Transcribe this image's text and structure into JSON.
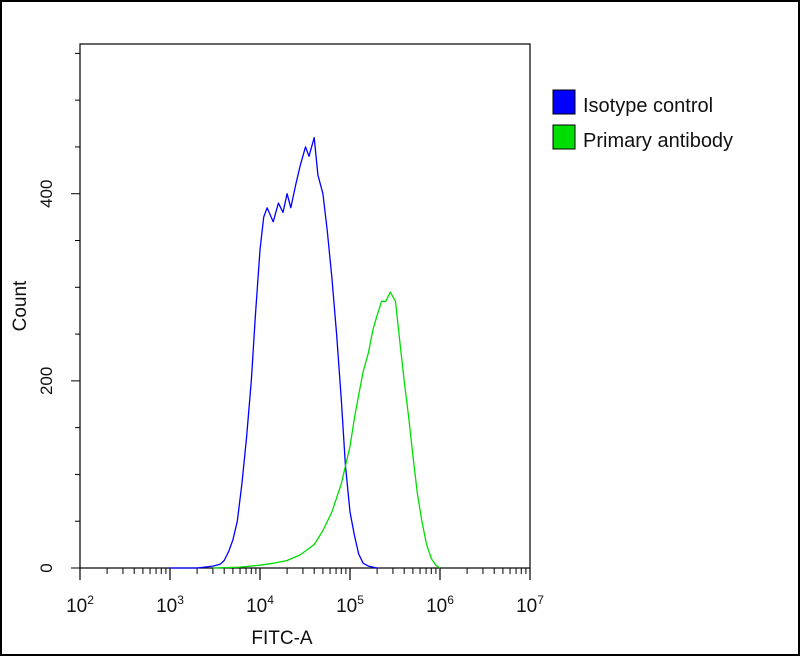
{
  "chart_data": {
    "type": "line",
    "title": "",
    "xlabel": "FITC-A",
    "ylabel": "Count",
    "x_scale": "log10",
    "x_range": [
      100,
      10000000
    ],
    "y_range": [
      0,
      560
    ],
    "x_ticks": [
      {
        "value": 100,
        "base": "10",
        "exp": "2"
      },
      {
        "value": 1000,
        "base": "10",
        "exp": "3"
      },
      {
        "value": 10000,
        "base": "10",
        "exp": "4"
      },
      {
        "value": 100000,
        "base": "10",
        "exp": "5"
      },
      {
        "value": 1000000,
        "base": "10",
        "exp": "6"
      },
      {
        "value": 10000000,
        "base": "10",
        "exp": "7"
      }
    ],
    "y_ticks": [
      {
        "value": 0,
        "label": "0"
      },
      {
        "value": 200,
        "label": "200"
      },
      {
        "value": 400,
        "label": "400"
      }
    ],
    "legend_position": "right",
    "series": [
      {
        "name": "Isotype control",
        "color": "#0000ff",
        "x": [
          1000,
          2000,
          3000,
          3600,
          4000,
          4500,
          5000,
          5600,
          6300,
          7100,
          8000,
          8900,
          10000,
          11000,
          12000,
          14000,
          16000,
          18000,
          20000,
          22000,
          25000,
          28000,
          32000,
          35000,
          40000,
          44000,
          50000,
          56000,
          63000,
          71000,
          80000,
          89000,
          100000,
          112000,
          125000,
          140000,
          160000,
          200000
        ],
        "y": [
          0,
          0,
          2,
          4,
          8,
          18,
          30,
          50,
          90,
          140,
          200,
          270,
          340,
          375,
          385,
          370,
          390,
          380,
          400,
          385,
          410,
          430,
          450,
          440,
          460,
          420,
          400,
          360,
          310,
          250,
          180,
          110,
          60,
          35,
          15,
          5,
          2,
          0
        ]
      },
      {
        "name": "Primary antibody",
        "color": "#00dd00",
        "x": [
          3000,
          6000,
          10000,
          14000,
          20000,
          28000,
          40000,
          50000,
          63000,
          80000,
          100000,
          112000,
          125000,
          140000,
          160000,
          180000,
          200000,
          224000,
          250000,
          280000,
          320000,
          350000,
          400000,
          450000,
          500000,
          560000,
          630000,
          710000,
          800000,
          900000,
          1000000
        ],
        "y": [
          0,
          1,
          3,
          5,
          8,
          14,
          25,
          40,
          60,
          90,
          130,
          160,
          185,
          210,
          230,
          255,
          270,
          285,
          285,
          295,
          285,
          250,
          200,
          160,
          120,
          80,
          50,
          25,
          10,
          3,
          0
        ]
      }
    ]
  }
}
